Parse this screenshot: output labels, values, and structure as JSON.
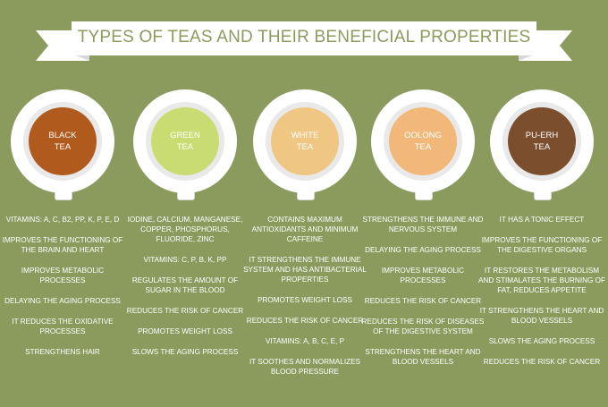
{
  "title": "TYPES OF TEAS AND THEIR BENEFICIAL PROPERTIES",
  "colors": {
    "background": "#8b9b5e",
    "banner": "#ffffff",
    "banner_fold": "#d8d8d8",
    "text": "#ffffff",
    "black_tea": "#b15a1e",
    "green_tea": "#c8dc72",
    "white_tea": "#efc783",
    "oolong_tea": "#f1b87a",
    "puerh_tea": "#7b4e2d"
  },
  "teas": [
    {
      "name_line1": "BLACK",
      "name_line2": "TEA",
      "color": "#b15a1e",
      "properties": [
        "VITAMINS: A, C, B2, PP, K, P, E, D",
        "IMPROVES THE FUNCTIONING OF THE BRAIN AND HEART",
        "IMPROVES METABOLIC PROCESSES",
        "DELAYING THE AGING PROCESS",
        "IT REDUCES THE OXIDATIVE PROCESSES",
        "STRENGTHENS HAIR"
      ]
    },
    {
      "name_line1": "GREEN",
      "name_line2": "TEA",
      "color": "#c8dc72",
      "properties": [
        "IODINE, CALCIUM, MANGANESE, COPPER, PHOSPHORUS, FLUORIDE, ZINC",
        "VITAMINS: C, P, B, K, PP",
        "REGULATES THE AMOUNT OF SUGAR IN THE BLOOD",
        "REDUCES THE RISK OF CANCER",
        "PROMOTES WEIGHT LOSS",
        "SLOWS THE AGING PROCESS"
      ]
    },
    {
      "name_line1": "WHITE",
      "name_line2": "TEA",
      "color": "#efc783",
      "properties": [
        "CONTAINS MAXIMUM ANTIOXIDANTS AND MINIMUM CAFFEINE",
        "IT STRENGTHENS THE IMMUNE SYSTEM AND HAS ANTIBACTERIAL PROPERTIES",
        "PROMOTES WEIGHT LOSS",
        "REDUCES THE RISK OF CANCER",
        "VITAMINS: A, B, C, E, P",
        "IT SOOTHES AND NORMALIZES BLOOD PRESSURE"
      ]
    },
    {
      "name_line1": "OOLONG",
      "name_line2": "TEA",
      "color": "#f1b87a",
      "properties": [
        "STRENGTHENS THE IMMUNE AND NERVOUS SYSTEM",
        "DELAYING THE AGING PROCESS",
        "IMPROVES METABOLIC PROCESSES",
        "REDUCES THE RISK OF CANCER",
        "REDUCES THE RISK OF DISEASES OF THE DIGESTIVE SYSTEM",
        "STRENGTHENS THE HEART AND BLOOD VESSELS"
      ]
    },
    {
      "name_line1": "PU-ERH",
      "name_line2": "TEA",
      "color": "#7b4e2d",
      "properties": [
        "IT HAS A TONIC EFFECT",
        "IMPROVES THE FUNCTIONING OF THE DIGESTIVE ORGANS",
        "IT RESTORES THE METABOLISM AND STIMALATES THE BURNING OF FAT, REDUCES APPETITE",
        "IT STRENGTHENS THE HEART AND BLOOD VESSELS",
        "SLOWS THE AGING PROCESS",
        "REDUCES THE RISK OF CANCER"
      ]
    }
  ]
}
